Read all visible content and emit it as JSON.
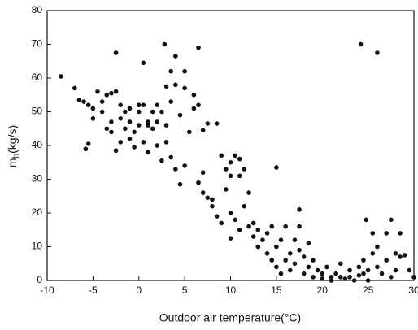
{
  "chart_data": {
    "type": "scatter",
    "xlabel": "Outdoor air temperature(°C)",
    "ylabel": {
      "main": "m",
      "sub": "h",
      "unit": "(kg/s)"
    },
    "xlim": [
      -10,
      30
    ],
    "xticks": [
      -10,
      -5,
      0,
      5,
      10,
      15,
      20,
      25,
      30
    ],
    "ylim": [
      0,
      80
    ],
    "yticks": [
      0,
      10,
      20,
      30,
      40,
      50,
      60,
      70,
      80
    ],
    "color": "#111111",
    "series": [
      {
        "x": [
          -8.5,
          -7,
          -6.5,
          -6,
          -5.8,
          -5.5,
          -5.5,
          -5,
          -5,
          -4.5,
          -4,
          -4,
          -3.5,
          -3.5,
          -3,
          -3,
          -3,
          -2.5,
          -2.5,
          -2.5,
          -2,
          -2,
          -2,
          -1.5,
          -1.5,
          -1,
          -1,
          -1,
          -0.5,
          -0.5,
          0,
          0,
          0,
          0.5,
          0.5,
          0.5,
          1,
          1,
          1,
          1.5,
          1.5,
          2,
          2,
          2,
          2.5,
          2.5,
          2.8,
          3,
          3,
          3,
          3.5,
          3.5,
          3.5,
          4,
          4,
          4,
          4.5,
          4.5,
          5,
          5,
          5,
          5.5,
          6,
          6,
          6.5,
          6.5,
          6.5,
          7,
          7,
          7,
          7.5,
          7.5,
          8,
          8,
          8.5,
          8.5,
          9,
          9,
          9.5,
          9.5,
          10,
          10,
          10,
          10,
          10.5,
          10.5,
          11,
          11,
          11,
          11.5,
          11.5,
          12,
          12,
          12.5,
          12.5,
          13,
          13,
          13.5,
          14,
          14,
          14.5,
          14.5,
          15,
          15,
          15,
          15.5,
          15.5,
          16,
          16,
          16.5,
          16.5,
          17,
          17,
          17.5,
          17.5,
          17.5,
          18,
          18,
          18.5,
          18.5,
          19,
          19,
          19.5,
          20,
          20,
          20.5,
          21,
          21,
          21.5,
          22,
          22,
          22.5,
          23,
          23,
          23.5,
          24,
          24,
          24.2,
          24.5,
          24.5,
          24.8,
          25,
          25,
          25.5,
          25.5,
          26,
          26,
          26,
          26.5,
          27,
          27,
          27.5,
          27.5,
          28,
          28,
          28.5,
          28.5,
          29,
          29.5,
          30
        ],
        "values": [
          60.5,
          57,
          53.5,
          53,
          39,
          40.5,
          52,
          48,
          51,
          56,
          50,
          53,
          55,
          45,
          47,
          44,
          55.5,
          56,
          67.5,
          38.5,
          48,
          41,
          52,
          50,
          45,
          42,
          47,
          51,
          39.5,
          44,
          50,
          46,
          52,
          64.5,
          41,
          52,
          38,
          47,
          46,
          50,
          45,
          52,
          40,
          47,
          35.5,
          50,
          70,
          57.5,
          46,
          41,
          62,
          53,
          36.5,
          66.5,
          58,
          33,
          28.5,
          49,
          62,
          57,
          34,
          44,
          55,
          51,
          69,
          52,
          29,
          44.5,
          26,
          32,
          24.5,
          46.5,
          22,
          24,
          46.5,
          19,
          37,
          17,
          33,
          27,
          35,
          31,
          20,
          12.5,
          37,
          18,
          36,
          31,
          15,
          33,
          22,
          16,
          26,
          13,
          17,
          10,
          15,
          12,
          8,
          14,
          6,
          16,
          33.5,
          10,
          4,
          12,
          2,
          6,
          16,
          8,
          3,
          12,
          5,
          21,
          16,
          9,
          2,
          7,
          11,
          4,
          1,
          6,
          3,
          2,
          0.5,
          4,
          1,
          0,
          2,
          1,
          5,
          0.5,
          3,
          1,
          0,
          4,
          1.5,
          70,
          6,
          2,
          18,
          3,
          0,
          14,
          8,
          67.5,
          4,
          10,
          2,
          14,
          6,
          18,
          1,
          3,
          8,
          14,
          7,
          7.5,
          3,
          1
        ]
      }
    ]
  }
}
